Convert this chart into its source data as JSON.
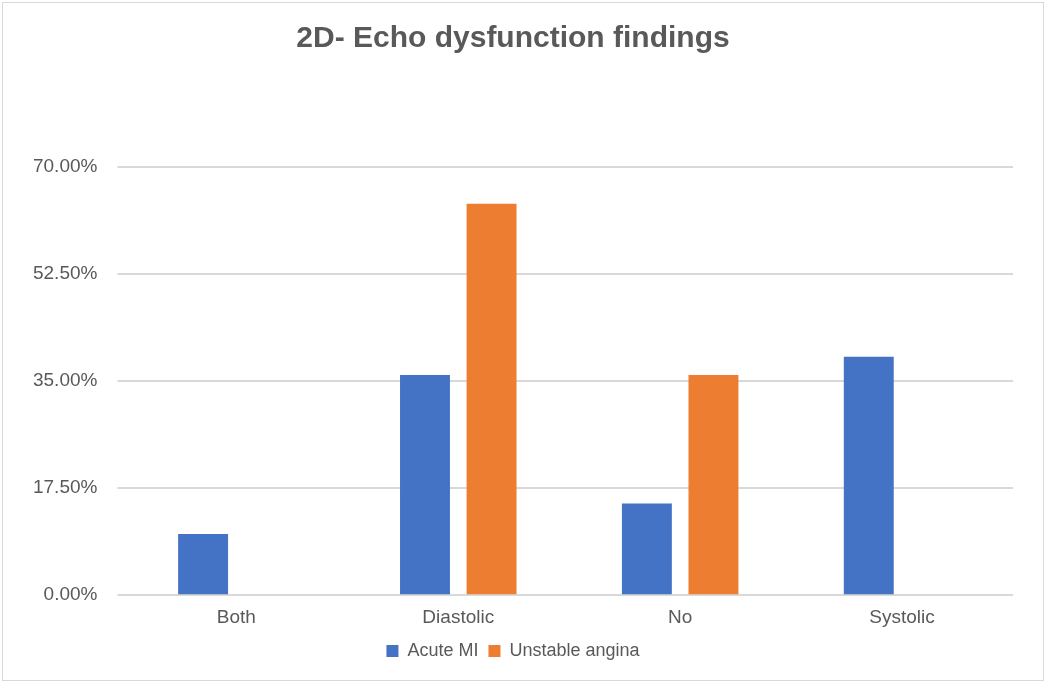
{
  "chart_data": {
    "type": "bar",
    "title": "2D- Echo dysfunction findings",
    "categories": [
      "Both",
      "Diastolic",
      "No",
      "Systolic"
    ],
    "series": [
      {
        "name": "Acute MI",
        "color": "#4472c4",
        "values": [
          10,
          36,
          15,
          39
        ]
      },
      {
        "name": "Unstable angina",
        "color": "#ed7d31",
        "values": [
          0,
          64,
          36,
          0
        ]
      }
    ],
    "ylim": [
      0,
      70
    ],
    "yticks": [
      {
        "value": 0,
        "label": "0.00%"
      },
      {
        "value": 17.5,
        "label": "17.50%"
      },
      {
        "value": 35,
        "label": "35.00%"
      },
      {
        "value": 52.5,
        "label": "52.50%"
      },
      {
        "value": 70,
        "label": "70.00%"
      }
    ],
    "grid": "y",
    "legend": "bottom"
  }
}
